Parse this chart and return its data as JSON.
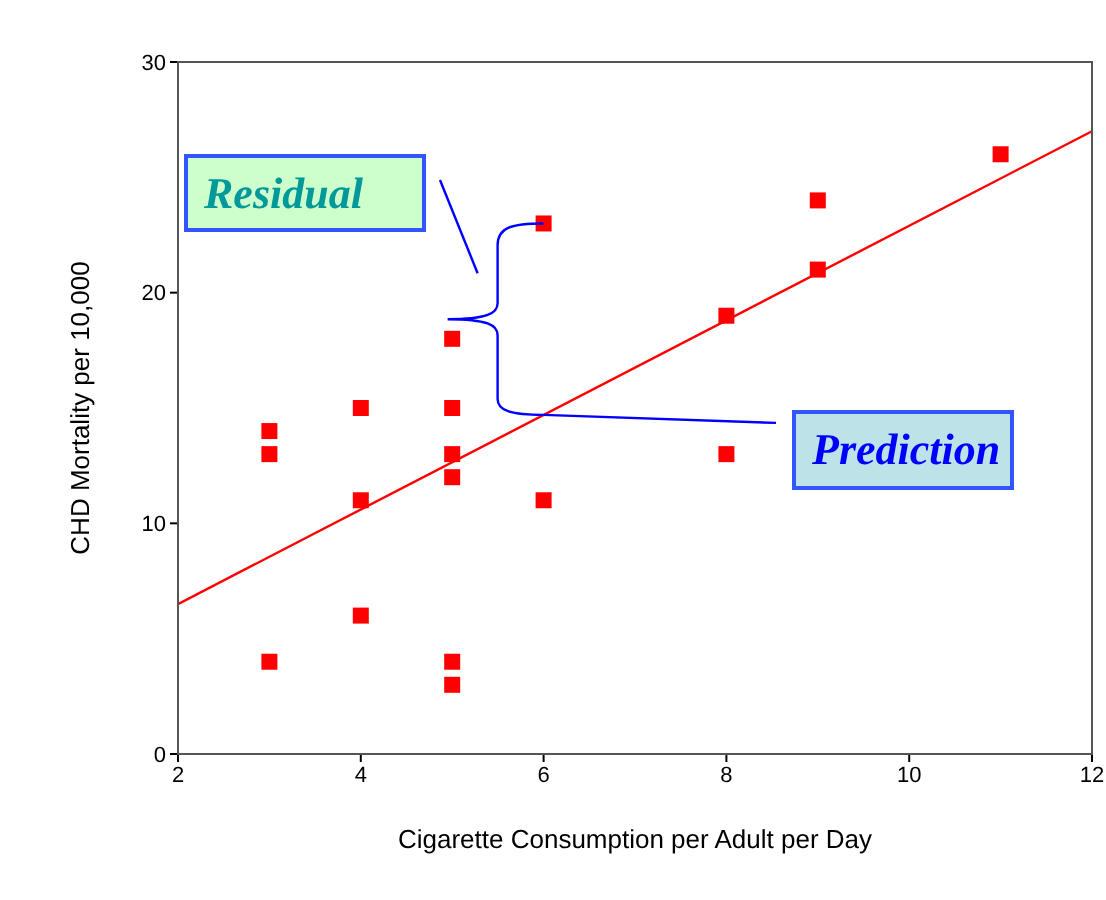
{
  "chart_data": {
    "type": "scatter",
    "xlabel": "Cigarette Consumption per Adult per Day",
    "ylabel": "CHD Mortality per 10,000",
    "xlim": [
      2,
      12
    ],
    "xticks": [
      2,
      4,
      6,
      8,
      10,
      12
    ],
    "ylim": [
      0,
      30
    ],
    "yticks": [
      0,
      10,
      20,
      30
    ],
    "marker": "square",
    "annotations": [
      "Residual",
      {
        "text": "Prediction",
        "x": 6,
        "y": 14.7
      }
    ],
    "series": [
      {
        "color": "#ff0000",
        "x": [
          3,
          3,
          3,
          4,
          4,
          4,
          5,
          5,
          5,
          5,
          5,
          5,
          6,
          6,
          8,
          8,
          9,
          9,
          11
        ],
        "values": [
          14,
          13,
          4,
          15,
          11,
          6,
          18,
          15,
          13,
          12,
          4,
          3,
          23,
          11,
          19,
          13,
          24,
          21,
          26
        ]
      },
      {
        "type": "line",
        "color": "#ff0000",
        "marker": "none",
        "x": [
          2,
          12
        ],
        "values": [
          6.5,
          27
        ]
      }
    ]
  }
}
